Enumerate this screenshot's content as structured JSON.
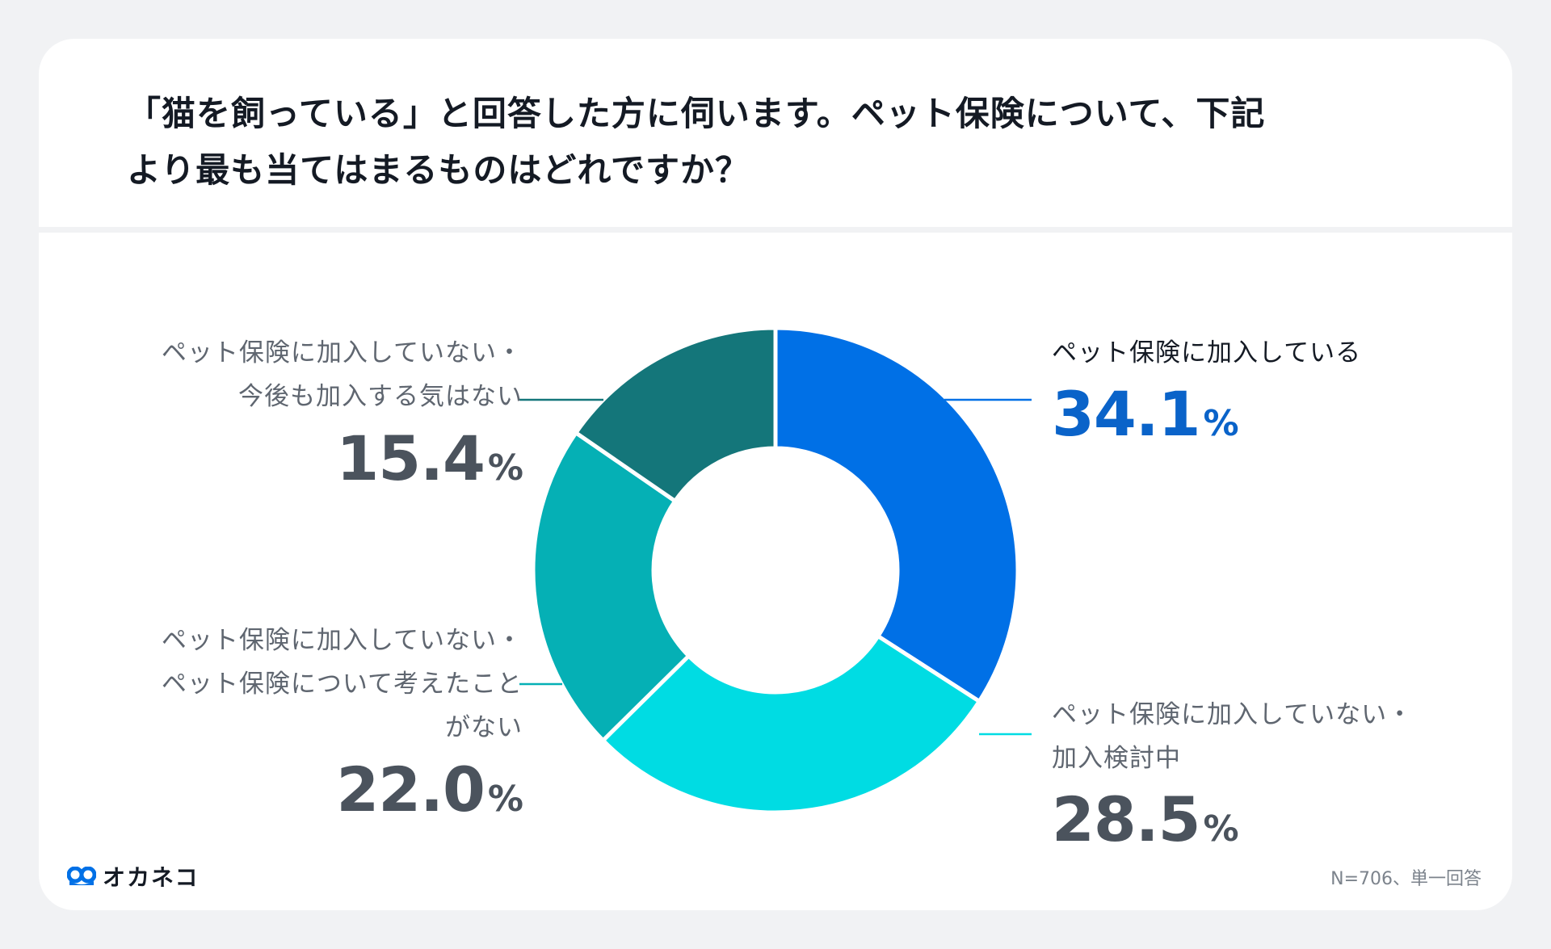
{
  "title_lines": [
    "「猫を飼っている」と回答した方に伺います。ペット保険について、下記",
    "より最も当てはまるものはどれですか？"
  ],
  "chart_data": {
    "type": "pie",
    "donut": true,
    "title": "「猫を飼っている」と回答した方に伺います。ペット保険について、下記より最も当てはまるものはどれですか？",
    "slices": [
      {
        "label_lines": [
          "ペット保険に加入している"
        ],
        "value": 34.1,
        "value_text": "34.1",
        "color": "#0070e6"
      },
      {
        "label_lines": [
          "ペット保険に加入していない・",
          "加入検討中"
        ],
        "value": 28.5,
        "value_text": "28.5",
        "color": "#00dce3"
      },
      {
        "label_lines": [
          "ペット保険に加入していない・",
          "ペット保険について考えたこと",
          "がない"
        ],
        "value": 22.0,
        "value_text": "22.0",
        "color": "#05b0b5"
      },
      {
        "label_lines": [
          "ペット保険に加入していない・",
          "今後も加入する気はない"
        ],
        "value": 15.4,
        "value_text": "15.4",
        "color": "#14767a"
      }
    ],
    "percent_symbol": "%"
  },
  "footer": {
    "logo_text": "オカネコ",
    "note": "N=706、単一回答"
  }
}
